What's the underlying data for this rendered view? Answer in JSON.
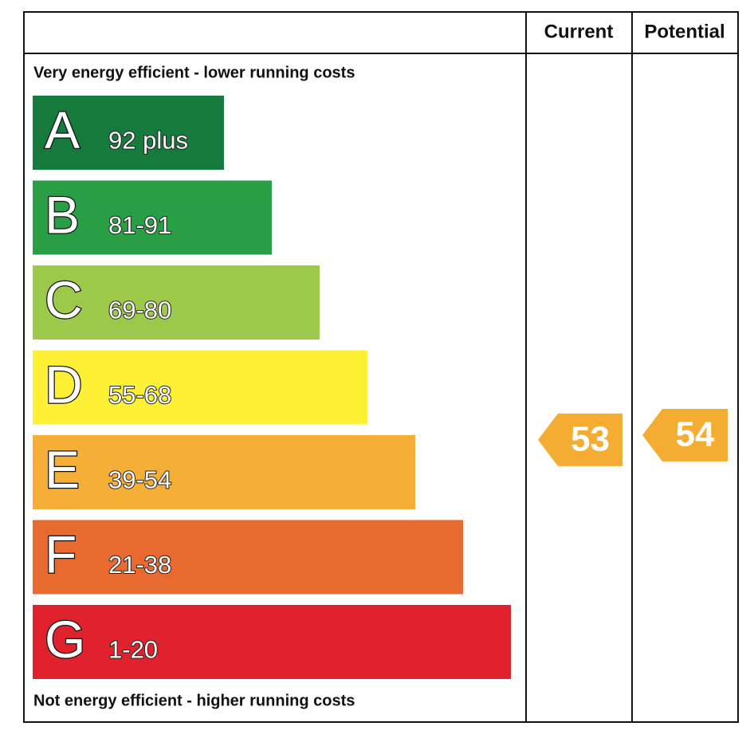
{
  "header": {
    "current": "Current",
    "potential": "Potential"
  },
  "top_note": "Very energy efficient - lower running costs",
  "bottom_note": "Not energy efficient - higher running costs",
  "bands": [
    {
      "letter": "A",
      "range": "92 plus",
      "color": "#157a3c"
    },
    {
      "letter": "B",
      "range": "81-91",
      "color": "#2a9e44"
    },
    {
      "letter": "C",
      "range": "69-80",
      "color": "#9dc94a"
    },
    {
      "letter": "D",
      "range": "55-68",
      "color": "#fef034"
    },
    {
      "letter": "E",
      "range": "39-54",
      "color": "#f5ae36"
    },
    {
      "letter": "F",
      "range": "21-38",
      "color": "#e96a31"
    },
    {
      "letter": "G",
      "range": "1-20",
      "color": "#e0222e"
    }
  ],
  "current": {
    "value": 53,
    "color": "#f5ac33"
  },
  "potential": {
    "value": 54,
    "color": "#f5ac33"
  }
}
